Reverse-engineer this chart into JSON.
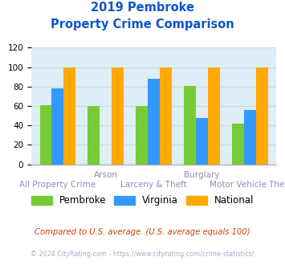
{
  "title_line1": "2019 Pembroke",
  "title_line2": "Property Crime Comparison",
  "categories": [
    "All Property Crime",
    "Arson",
    "Larceny & Theft",
    "Burglary",
    "Motor Vehicle Theft"
  ],
  "series": {
    "Pembroke": [
      61,
      60,
      60,
      81,
      42
    ],
    "Virginia": [
      78,
      0,
      88,
      48,
      56
    ],
    "National": [
      100,
      100,
      100,
      100,
      100
    ]
  },
  "colors": {
    "Pembroke": "#77cc33",
    "Virginia": "#3399ff",
    "National": "#ffaa00"
  },
  "ylim": [
    0,
    120
  ],
  "yticks": [
    0,
    20,
    40,
    60,
    80,
    100,
    120
  ],
  "bar_width": 0.25,
  "grid_color": "#ccddcc",
  "bg_color": "#ddeef8",
  "title_color": "#1155cc",
  "label_color": "#9988aa",
  "footnote1": "Compared to U.S. average. (U.S. average equals 100)",
  "footnote2": "© 2024 CityRating.com - https://www.cityrating.com/crime-statistics/",
  "footnote1_color": "#cc4400",
  "footnote2_color": "#aaaacc",
  "top_labels": {
    "1": "Arson",
    "3": "Burglary"
  },
  "bottom_labels": {
    "0": "All Property Crime",
    "2": "Larceny & Theft",
    "4": "Motor Vehicle Theft"
  }
}
